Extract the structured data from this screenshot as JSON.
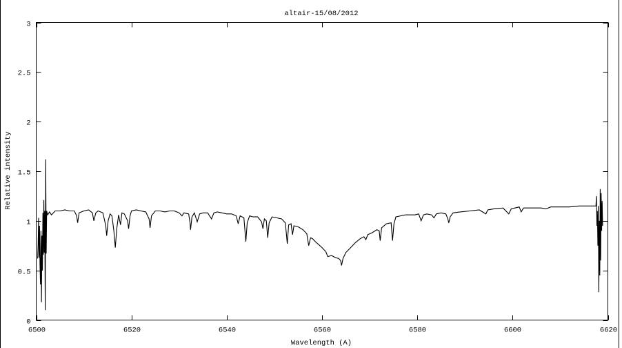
{
  "chart_data": {
    "type": "line",
    "title": "altair-15/08/2012",
    "xlabel": "Wavelength (A)",
    "ylabel": "Relative intensity",
    "xlim": [
      6500,
      6620
    ],
    "ylim": [
      0,
      3
    ],
    "xticks": [
      "6500",
      "6520",
      "6540",
      "6560",
      "6580",
      "6600",
      "6620"
    ],
    "yticks": [
      "0",
      "0.5",
      "1",
      "1.5",
      "2",
      "2.5",
      "3"
    ],
    "grid": false,
    "line_color": "#000000",
    "series": [
      {
        "points": [
          [
            6500.3,
            0.62
          ],
          [
            6500.4,
            0.76
          ],
          [
            6500.5,
            1.03
          ],
          [
            6500.6,
            0.63
          ],
          [
            6500.7,
            0.95
          ],
          [
            6500.8,
            0.55
          ],
          [
            6500.9,
            0.36
          ],
          [
            6501.0,
            0.9
          ],
          [
            6501.1,
            0.18
          ],
          [
            6501.2,
            0.85
          ],
          [
            6501.3,
            0.5
          ],
          [
            6501.4,
            1.08
          ],
          [
            6501.5,
            0.66
          ],
          [
            6501.6,
            1.21
          ],
          [
            6501.7,
            0.68
          ],
          [
            6501.8,
            1.1
          ],
          [
            6501.9,
            0.1
          ],
          [
            6502.0,
            1.62
          ],
          [
            6502.1,
            0.67
          ],
          [
            6502.2,
            1.1
          ],
          [
            6502.4,
            1.06
          ],
          [
            6502.8,
            1.09
          ],
          [
            6503.2,
            1.06
          ],
          [
            6503.6,
            1.08
          ],
          [
            6504,
            1.1
          ],
          [
            6505,
            1.1
          ],
          [
            6506,
            1.11
          ],
          [
            6507,
            1.1
          ],
          [
            6508,
            1.1
          ],
          [
            6508.5,
            1.05
          ],
          [
            6508.7,
            0.98
          ],
          [
            6509,
            1.08
          ],
          [
            6510,
            1.1
          ],
          [
            6511,
            1.11
          ],
          [
            6511.8,
            1.08
          ],
          [
            6512.1,
            1.0
          ],
          [
            6512.5,
            1.08
          ],
          [
            6513,
            1.1
          ],
          [
            6514,
            1.08
          ],
          [
            6514.6,
            0.95
          ],
          [
            6514.8,
            0.85
          ],
          [
            6515.1,
            1.0
          ],
          [
            6515.5,
            1.07
          ],
          [
            6515.9,
            1.05
          ],
          [
            6516.3,
            0.9
          ],
          [
            6516.6,
            0.73
          ],
          [
            6516.9,
            0.92
          ],
          [
            6517.3,
            1.06
          ],
          [
            6517.7,
            0.96
          ],
          [
            6518,
            1.08
          ],
          [
            6518.5,
            1.07
          ],
          [
            6519.2,
            1.0
          ],
          [
            6519.4,
            0.92
          ],
          [
            6519.7,
            1.05
          ],
          [
            6520,
            1.1
          ],
          [
            6521,
            1.11
          ],
          [
            6522,
            1.1
          ],
          [
            6523,
            1.09
          ],
          [
            6523.7,
            1.02
          ],
          [
            6523.9,
            0.93
          ],
          [
            6524.2,
            1.05
          ],
          [
            6525,
            1.1
          ],
          [
            6526,
            1.1
          ],
          [
            6527,
            1.09
          ],
          [
            6528,
            1.1
          ],
          [
            6529,
            1.1
          ],
          [
            6530,
            1.08
          ],
          [
            6530.6,
            1.05
          ],
          [
            6531,
            1.08
          ],
          [
            6532,
            1.07
          ],
          [
            6532.3,
            0.98
          ],
          [
            6532.4,
            0.91
          ],
          [
            6532.7,
            1.04
          ],
          [
            6533.2,
            1.08
          ],
          [
            6533.8,
            0.99
          ],
          [
            6534.3,
            1.07
          ],
          [
            6535,
            1.08
          ],
          [
            6536,
            1.08
          ],
          [
            6536.8,
            1.02
          ],
          [
            6537.3,
            1.08
          ],
          [
            6538,
            1.09
          ],
          [
            6539,
            1.08
          ],
          [
            6540,
            1.07
          ],
          [
            6541,
            1.07
          ],
          [
            6542,
            1.05
          ],
          [
            6542.4,
            0.97
          ],
          [
            6542.8,
            1.05
          ],
          [
            6543.6,
            1.03
          ],
          [
            6544,
            0.79
          ],
          [
            6544.3,
            0.98
          ],
          [
            6544.8,
            1.05
          ],
          [
            6545.5,
            1.04
          ],
          [
            6546.5,
            1.04
          ],
          [
            6547.3,
            0.99
          ],
          [
            6547.6,
            0.92
          ],
          [
            6547.9,
            1.02
          ],
          [
            6548.3,
            1.0
          ],
          [
            6548.6,
            0.83
          ],
          [
            6548.9,
            0.98
          ],
          [
            6549.5,
            1.04
          ],
          [
            6550.5,
            1.03
          ],
          [
            6551.5,
            1.02
          ],
          [
            6552.3,
            0.98
          ],
          [
            6552.7,
            0.77
          ],
          [
            6553,
            0.96
          ],
          [
            6553.5,
            0.97
          ],
          [
            6553.8,
            0.86
          ],
          [
            6554.1,
            0.95
          ],
          [
            6555,
            0.94
          ],
          [
            6556,
            0.91
          ],
          [
            6556.8,
            0.87
          ],
          [
            6557.2,
            0.75
          ],
          [
            6557.6,
            0.83
          ],
          [
            6558,
            0.82
          ],
          [
            6558.6,
            0.79
          ],
          [
            6559.3,
            0.76
          ],
          [
            6560,
            0.73
          ],
          [
            6560.8,
            0.69
          ],
          [
            6561.2,
            0.64
          ],
          [
            6562,
            0.65
          ],
          [
            6562.8,
            0.63
          ],
          [
            6563.5,
            0.62
          ],
          [
            6563.9,
            0.6
          ],
          [
            6564.1,
            0.55
          ],
          [
            6564.4,
            0.62
          ],
          [
            6565,
            0.68
          ],
          [
            6566,
            0.73
          ],
          [
            6567,
            0.78
          ],
          [
            6568,
            0.82
          ],
          [
            6568.8,
            0.84
          ],
          [
            6569.2,
            0.81
          ],
          [
            6569.6,
            0.86
          ],
          [
            6570.5,
            0.88
          ],
          [
            6571.5,
            0.91
          ],
          [
            6572,
            0.9
          ],
          [
            6572.2,
            0.8
          ],
          [
            6572.5,
            0.93
          ],
          [
            6573.5,
            0.97
          ],
          [
            6574.5,
            0.98
          ],
          [
            6574.8,
            0.8
          ],
          [
            6575.1,
            0.97
          ],
          [
            6575.5,
            1.04
          ],
          [
            6576.5,
            1.05
          ],
          [
            6577.5,
            1.06
          ],
          [
            6578.5,
            1.06
          ],
          [
            6579.5,
            1.06
          ],
          [
            6580.3,
            1.07
          ],
          [
            6580.8,
            1.0
          ],
          [
            6581.3,
            1.06
          ],
          [
            6582,
            1.07
          ],
          [
            6583,
            1.06
          ],
          [
            6583.5,
            1.03
          ],
          [
            6584,
            1.07
          ],
          [
            6585,
            1.08
          ],
          [
            6586,
            1.07
          ],
          [
            6586.4,
            1.02
          ],
          [
            6586.6,
            0.98
          ],
          [
            6586.9,
            1.04
          ],
          [
            6587.5,
            1.08
          ],
          [
            6589,
            1.09
          ],
          [
            6591,
            1.1
          ],
          [
            6593,
            1.11
          ],
          [
            6594.4,
            1.07
          ],
          [
            6594.8,
            1.11
          ],
          [
            6596,
            1.12
          ],
          [
            6598,
            1.13
          ],
          [
            6599.2,
            1.07
          ],
          [
            6599.7,
            1.12
          ],
          [
            6600.5,
            1.13
          ],
          [
            6601.4,
            1.14
          ],
          [
            6601.8,
            1.09
          ],
          [
            6602.3,
            1.13
          ],
          [
            6604,
            1.13
          ],
          [
            6606,
            1.13
          ],
          [
            6607,
            1.12
          ],
          [
            6608,
            1.14
          ],
          [
            6610,
            1.14
          ],
          [
            6612,
            1.14
          ],
          [
            6614,
            1.15
          ],
          [
            6615.5,
            1.15
          ],
          [
            6617,
            1.15
          ],
          [
            6617.5,
            1.15
          ],
          [
            6617.6,
            1.25
          ],
          [
            6617.7,
            0.95
          ],
          [
            6617.8,
            1.1
          ],
          [
            6617.9,
            0.75
          ],
          [
            6618.0,
            1.15
          ],
          [
            6618.1,
            0.28
          ],
          [
            6618.2,
            1.0
          ],
          [
            6618.3,
            0.45
          ],
          [
            6618.4,
            1.32
          ],
          [
            6618.5,
            0.6
          ],
          [
            6618.6,
            1.28
          ],
          [
            6618.7,
            0.9
          ],
          [
            6618.8,
            1.2
          ],
          [
            6618.9,
            0.95
          ]
        ]
      }
    ]
  }
}
